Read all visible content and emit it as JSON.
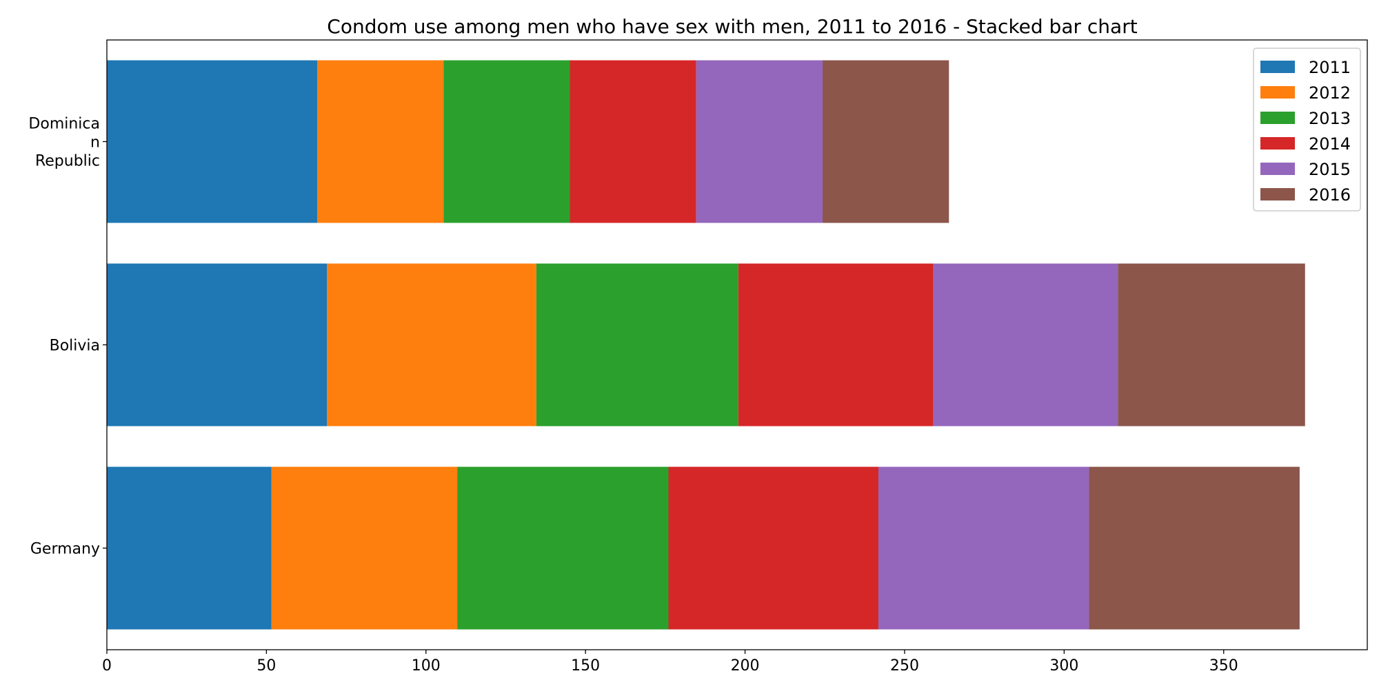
{
  "chart_data": {
    "type": "bar",
    "orientation": "horizontal",
    "stacked": true,
    "title": "Condom use among men who have sex with men, 2011 to 2016 - Stacked bar chart",
    "xlabel": "",
    "ylabel": "",
    "xlim": [
      0,
      395
    ],
    "xticks": [
      0,
      50,
      100,
      150,
      200,
      250,
      300,
      350
    ],
    "grid": false,
    "legend_position": "top-right",
    "categories": [
      {
        "lines": [
          "Dominica",
          "n",
          "Republic"
        ]
      },
      {
        "lines": [
          "Bolivia"
        ]
      },
      {
        "lines": [
          "Germany"
        ]
      }
    ],
    "series": [
      {
        "name": "2011",
        "color": "#1f77b4",
        "values": [
          65.9,
          69.0,
          51.6
        ]
      },
      {
        "name": "2012",
        "color": "#ff7f0e",
        "values": [
          39.6,
          65.6,
          58.2
        ]
      },
      {
        "name": "2013",
        "color": "#2ca02c",
        "values": [
          39.6,
          63.3,
          66.2
        ]
      },
      {
        "name": "2014",
        "color": "#d62728",
        "values": [
          39.6,
          61.1,
          65.8
        ]
      },
      {
        "name": "2015",
        "color": "#9467bd",
        "values": [
          39.6,
          57.9,
          66.0
        ]
      },
      {
        "name": "2016",
        "color": "#8c564b",
        "values": [
          39.6,
          58.6,
          66.0
        ]
      }
    ]
  }
}
